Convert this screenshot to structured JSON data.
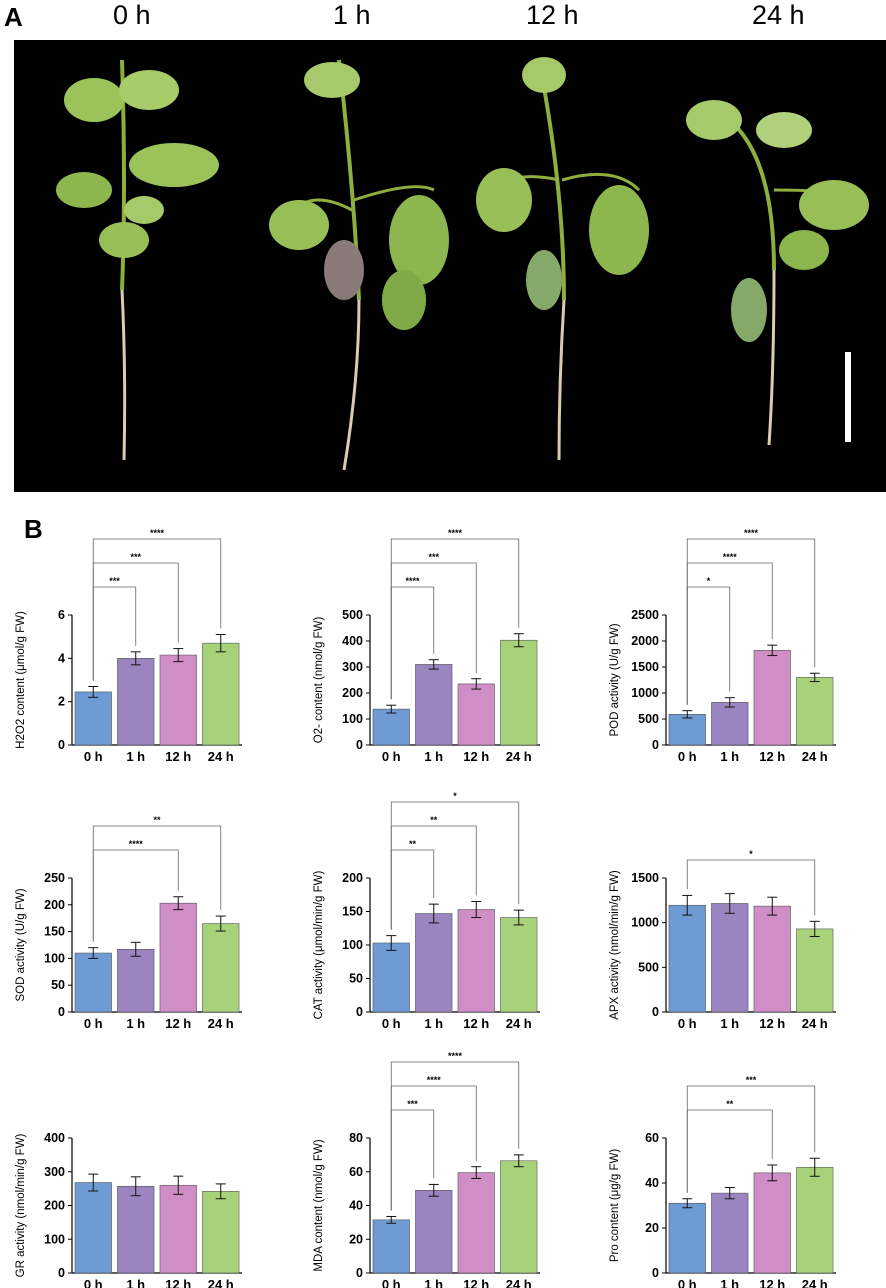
{
  "panel_a": {
    "letter": "A",
    "time_labels": [
      "0 h",
      "1 h",
      "12 h",
      "24 h"
    ],
    "photo_subject": "tomato seedlings under stress at four time points, black background, white scale bar",
    "scale_bar_color": "#ffffff"
  },
  "panel_b": {
    "letter": "B"
  },
  "colors": {
    "bar_0h": "#6f9bd5",
    "bar_1h": "#9b85c1",
    "bar_12h": "#cf8fc6",
    "bar_24h": "#a7d27a"
  },
  "chart_data": [
    {
      "type": "bar",
      "ylabel": "H2O2 content (μmol/g FW)",
      "categories": [
        "0 h",
        "1 h",
        "12 h",
        "24 h"
      ],
      "values": [
        2.45,
        4.0,
        4.15,
        4.7
      ],
      "errors": [
        0.25,
        0.3,
        0.3,
        0.4
      ],
      "ylim": [
        0,
        6
      ],
      "yticks": [
        0,
        2,
        4,
        6
      ],
      "significance": [
        {
          "from": 0,
          "to": 1,
          "label": "***"
        },
        {
          "from": 0,
          "to": 2,
          "label": "***"
        },
        {
          "from": 0,
          "to": 3,
          "label": "****"
        }
      ]
    },
    {
      "type": "bar",
      "ylabel": "O2- content (nmol/g FW)",
      "categories": [
        "0 h",
        "1 h",
        "12 h",
        "24 h"
      ],
      "values": [
        138,
        310,
        235,
        403
      ],
      "errors": [
        15,
        18,
        20,
        25
      ],
      "ylim": [
        0,
        500
      ],
      "yticks": [
        0,
        100,
        200,
        300,
        400,
        500
      ],
      "significance": [
        {
          "from": 0,
          "to": 1,
          "label": "****"
        },
        {
          "from": 0,
          "to": 2,
          "label": "***"
        },
        {
          "from": 0,
          "to": 3,
          "label": "****"
        }
      ]
    },
    {
      "type": "bar",
      "ylabel": "POD activity (U/g FW)",
      "categories": [
        "0 h",
        "1 h",
        "12 h",
        "24 h"
      ],
      "values": [
        590,
        820,
        1820,
        1300
      ],
      "errors": [
        70,
        90,
        100,
        80
      ],
      "ylim": [
        0,
        2500
      ],
      "yticks": [
        0,
        500,
        1000,
        1500,
        2000,
        2500
      ],
      "significance": [
        {
          "from": 0,
          "to": 1,
          "label": "*"
        },
        {
          "from": 0,
          "to": 2,
          "label": "****"
        },
        {
          "from": 0,
          "to": 3,
          "label": "****"
        }
      ]
    },
    {
      "type": "bar",
      "ylabel": "SOD activity (U/g FW)",
      "categories": [
        "0 h",
        "1 h",
        "12 h",
        "24 h"
      ],
      "values": [
        110,
        117,
        203,
        165
      ],
      "errors": [
        10,
        13,
        12,
        14
      ],
      "ylim": [
        0,
        250
      ],
      "yticks": [
        0,
        50,
        100,
        150,
        200,
        250
      ],
      "significance": [
        {
          "from": 0,
          "to": 2,
          "label": "****"
        },
        {
          "from": 0,
          "to": 3,
          "label": "**"
        }
      ]
    },
    {
      "type": "bar",
      "ylabel": "CAT activity (μmol/min/g FW)",
      "categories": [
        "0 h",
        "1 h",
        "12 h",
        "24 h"
      ],
      "values": [
        103,
        147,
        153,
        141
      ],
      "errors": [
        11,
        14,
        12,
        11
      ],
      "ylim": [
        0,
        200
      ],
      "yticks": [
        0,
        50,
        100,
        150,
        200
      ],
      "significance": [
        {
          "from": 0,
          "to": 1,
          "label": "**"
        },
        {
          "from": 0,
          "to": 2,
          "label": "**"
        },
        {
          "from": 0,
          "to": 3,
          "label": "*"
        }
      ]
    },
    {
      "type": "bar",
      "ylabel": "APX activity (nmol/min/g FW)",
      "categories": [
        "0 h",
        "1 h",
        "12 h",
        "24 h"
      ],
      "values": [
        1195,
        1215,
        1185,
        930
      ],
      "errors": [
        110,
        110,
        100,
        85
      ],
      "ylim": [
        0,
        1500
      ],
      "yticks": [
        0,
        500,
        1000,
        1500
      ],
      "significance": [
        {
          "from": 0,
          "to": 3,
          "label": "*"
        }
      ]
    },
    {
      "type": "bar",
      "ylabel": "GR activity (nmol/min/g FW)",
      "categories": [
        "0 h",
        "1 h",
        "12 h",
        "24 h"
      ],
      "values": [
        268,
        257,
        260,
        242
      ],
      "errors": [
        25,
        28,
        27,
        22
      ],
      "ylim": [
        0,
        400
      ],
      "yticks": [
        0,
        100,
        200,
        300,
        400
      ],
      "significance": []
    },
    {
      "type": "bar",
      "ylabel": "MDA content (nmol/g FW)",
      "categories": [
        "0 h",
        "1 h",
        "12 h",
        "24 h"
      ],
      "values": [
        31.5,
        49,
        59.5,
        66.5
      ],
      "errors": [
        2,
        3.5,
        3.5,
        3.5
      ],
      "ylim": [
        0,
        80
      ],
      "yticks": [
        0,
        20,
        40,
        60,
        80
      ],
      "significance": [
        {
          "from": 0,
          "to": 1,
          "label": "***"
        },
        {
          "from": 0,
          "to": 2,
          "label": "****"
        },
        {
          "from": 0,
          "to": 3,
          "label": "****"
        }
      ]
    },
    {
      "type": "bar",
      "ylabel": "Pro content (μg/g FW)",
      "categories": [
        "0 h",
        "1 h",
        "12 h",
        "24 h"
      ],
      "values": [
        31,
        35.5,
        44.5,
        47
      ],
      "errors": [
        2,
        2.5,
        3.5,
        4
      ],
      "ylim": [
        0,
        60
      ],
      "yticks": [
        0,
        20,
        40,
        60
      ],
      "significance": [
        {
          "from": 0,
          "to": 2,
          "label": "**"
        },
        {
          "from": 0,
          "to": 3,
          "label": "***"
        }
      ]
    }
  ]
}
